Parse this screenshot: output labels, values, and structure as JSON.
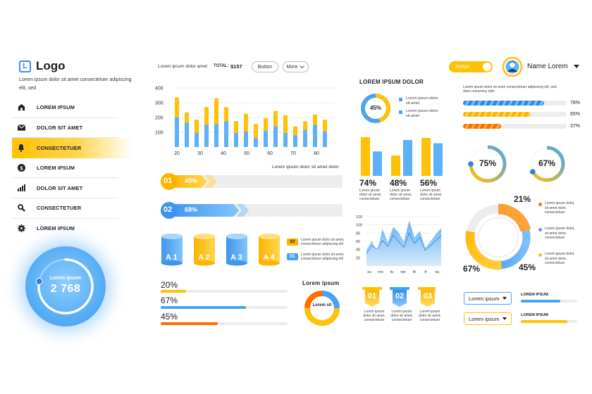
{
  "sidebar": {
    "logo_icon": "L",
    "logo_text": "Logo",
    "subtitle": "Lorem ipsum dolor sit amet consectetuer adipiscing elit, sed",
    "items": [
      {
        "label": "LOREM IPSUM",
        "icon": "home-icon"
      },
      {
        "label": "DOLOR SIT AMET",
        "icon": "mail-icon"
      },
      {
        "label": "CONSECTETUER",
        "icon": "bell-icon",
        "active": true
      },
      {
        "label": "LOREM IPSUM",
        "icon": "dollar-icon"
      },
      {
        "label": "DOLOR SIT AMET",
        "icon": "bar-chart-icon"
      },
      {
        "label": "CONSECTETUER",
        "icon": "search-icon"
      },
      {
        "label": "LOREM IPSUM",
        "icon": "gear-icon"
      }
    ],
    "gauge": {
      "label": "Lorem ipsum",
      "value": "2 768",
      "fraction": 0.78
    }
  },
  "header": {
    "caption": "Lorem ipsum dolor amet",
    "total_label": "TOTAL:",
    "total_value": "$157",
    "button_label": "Button",
    "more_label": "More"
  },
  "topright": {
    "toggle_label": "Button",
    "user_name": "Name Lorem",
    "caption": "Lorem ipsum dolor sit amet consectetuer adipiscing elit, sed diam nonummy nibh"
  },
  "colors": {
    "blue": "#4aa3f0",
    "yellow": "#ffc107",
    "orange": "#ff6d00"
  },
  "chart_data": [
    {
      "type": "bar",
      "x_ticks": [
        "20",
        "30",
        "40",
        "50",
        "60",
        "70",
        "80"
      ],
      "y_ticks": [
        "100",
        "200",
        "300",
        "400"
      ],
      "ylim": [
        0,
        400
      ],
      "series": [
        {
          "values": [
            335,
            235,
            185,
            270,
            330,
            270,
            175,
            225,
            155,
            195,
            245,
            215,
            140,
            175,
            220,
            185
          ]
        },
        {
          "values": [
            200,
            165,
            95,
            150,
            155,
            175,
            95,
            105,
            60,
            110,
            140,
            95,
            80,
            115,
            150,
            105
          ]
        }
      ]
    },
    {
      "type": "area",
      "x_ticks": [
        "su",
        "mo",
        "tu",
        "we",
        "th",
        "fr",
        "sa"
      ],
      "y_ticks": [
        "120",
        "100",
        "80",
        "60",
        "40",
        "20"
      ],
      "ylim": [
        0,
        120
      ],
      "series": [
        {
          "values": [
            40,
            62,
            35,
            90,
            58,
            95,
            82,
            60,
            110,
            70,
            85,
            45,
            60,
            78,
            92
          ]
        },
        {
          "values": [
            30,
            50,
            40,
            62,
            48,
            75,
            60,
            45,
            80,
            55,
            70,
            38,
            50,
            62,
            74
          ]
        }
      ]
    }
  ],
  "progress_arrows": [
    {
      "num": "01",
      "pct": "45%",
      "value": 0.45,
      "label": "Lorem ipsum dolor sit amet dolor"
    },
    {
      "num": "02",
      "pct": "68%",
      "value": 0.68
    }
  ],
  "cylinders": {
    "items": [
      "A 1",
      "A 2",
      "A 3",
      "A 4"
    ],
    "legend": [
      {
        "num": "02",
        "text": "Lorem ipsum dolor sit amet, consectetuer adipiscing elit"
      },
      {
        "num": "01",
        "text": "Lorem ipsum dolor sit amet, consectetuer adipiscing elit"
      }
    ]
  },
  "hbars": [
    {
      "pct": "20%",
      "value": 0.2
    },
    {
      "pct": "67%",
      "value": 0.67
    },
    {
      "pct": "45%",
      "value": 0.45
    }
  ],
  "small_donut": {
    "title": "Lorem ipsum",
    "center": "Lorem sit"
  },
  "middle": {
    "title": "LOREM IPSUM DOLOR",
    "donut_pct": "45%",
    "donut_value": 0.45,
    "legend": [
      "Lorem ipsum dolor sit amet",
      "Lorem ipsum dolor sit amet"
    ],
    "bars": [
      {
        "pct": "74%",
        "yellow": 0.95,
        "blue": 0.6
      },
      {
        "pct": "48%",
        "yellow": 0.5,
        "blue": 0.88
      },
      {
        "pct": "56%",
        "yellow": 0.93,
        "blue": 0.8
      }
    ],
    "bar_caption": "Lorem ipsum dolor sit amet, consectetuer",
    "tags": [
      {
        "num": "01",
        "text": "Lorem ipsum dolor sit amet, consectetuer"
      },
      {
        "num": "02",
        "text": "Lorem ipsum dolor sit amet, consectetuer"
      },
      {
        "num": "03",
        "text": "Lorem ipsum dolor sit amet, consectetuer"
      }
    ]
  },
  "right": {
    "progress": [
      {
        "pct": "78%",
        "value": 0.78,
        "color": "blue"
      },
      {
        "pct": "65%",
        "value": 0.65,
        "color": "yellow"
      },
      {
        "pct": "37%",
        "value": 0.37,
        "color": "orange"
      }
    ],
    "gauges": [
      {
        "pct": "75%",
        "value": 0.75
      },
      {
        "pct": "67%",
        "value": 0.67
      }
    ],
    "big_donut": {
      "labels": [
        "21%",
        "45%",
        "67%"
      ],
      "legend": [
        "Lorem ipsum dolor, sit amet dolor, consectetuer",
        "Lorem ipsum dolor, sit amet dolor, consectetuer",
        "Lorem ipsum dolor, sit amet dolor, consectetuer"
      ]
    },
    "dropdowns": [
      {
        "value": "Lorem ipsum",
        "label": "LOREM IPSUM",
        "bar": 0.7
      },
      {
        "value": "Lorem ipsum",
        "label": "LOREM IPSUM",
        "bar": 0.82
      }
    ]
  }
}
